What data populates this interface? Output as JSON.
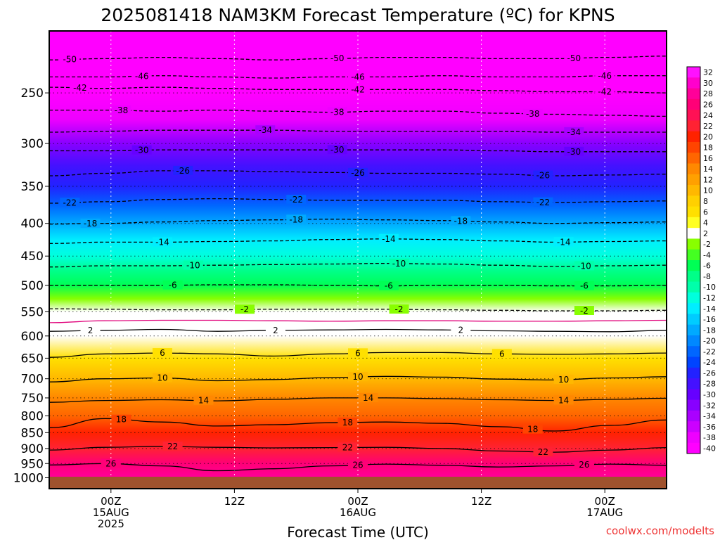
{
  "chart_data": {
    "type": "heatmap",
    "title": "2025081418 NAM3KM Forecast Temperature (ºC) for KPNS",
    "xlabel": "Forecast Time (UTC)",
    "ylabel": "",
    "credit": "coolwx.com/modelts",
    "y_scale": "log",
    "y_reversed": true,
    "ylim": [
      1040,
      200
    ],
    "y_ticks": [
      250,
      300,
      350,
      400,
      450,
      500,
      550,
      600,
      650,
      700,
      750,
      800,
      850,
      900,
      950,
      1000
    ],
    "xlim": [
      "2025-08-14 18Z",
      "2025-08-17 06Z"
    ],
    "x_ticks": [
      {
        "time": "2025-08-15 00Z",
        "lines": [
          "00Z",
          "15AUG",
          "2025"
        ]
      },
      {
        "time": "2025-08-15 12Z",
        "lines": [
          "12Z"
        ]
      },
      {
        "time": "2025-08-16 00Z",
        "lines": [
          "00Z",
          "16AUG"
        ]
      },
      {
        "time": "2025-08-16 12Z",
        "lines": [
          "12Z"
        ]
      },
      {
        "time": "2025-08-17 00Z",
        "lines": [
          "00Z",
          "17AUG"
        ]
      }
    ],
    "grid": true,
    "colorbar": {
      "position": "right",
      "labels": [
        "32",
        "30",
        "28",
        "26",
        "24",
        "22",
        "20",
        "18",
        "16",
        "14",
        "12",
        "10",
        "8",
        "6",
        "4",
        "2",
        "-2",
        "-4",
        "-6",
        "-8",
        "-10",
        "-12",
        "-14",
        "-16",
        "-18",
        "-20",
        "-22",
        "-24",
        "-26",
        "-28",
        "-30",
        "-32",
        "-34",
        "-36",
        "-38",
        "-40"
      ],
      "colors": [
        "#ff11ff",
        "#ff00cc",
        "#ff0099",
        "#ff0077",
        "#ff1155",
        "#ff2233",
        "#ff2200",
        "#ff4400",
        "#ff6600",
        "#ff8800",
        "#ffa000",
        "#ffb800",
        "#ffd000",
        "#ffe000",
        "#ffff22",
        "#ffffff",
        "#88ff00",
        "#44ff22",
        "#00ff55",
        "#00ff88",
        "#00ffaa",
        "#00ffdd",
        "#00eeff",
        "#00ccff",
        "#00aaff",
        "#0088ff",
        "#0066ff",
        "#0044ff",
        "#2222ff",
        "#4411ff",
        "#6600ff",
        "#8800ff",
        "#aa00ff",
        "#cc00ff",
        "#ee00ff",
        "#ff00ff"
      ]
    },
    "temperature_profile": [
      {
        "p": 200,
        "t": -56
      },
      {
        "p": 225,
        "t": -50
      },
      {
        "p": 250,
        "t": -44
      },
      {
        "p": 275,
        "t": -38
      },
      {
        "p": 300,
        "t": -33
      },
      {
        "p": 325,
        "t": -29
      },
      {
        "p": 350,
        "t": -26
      },
      {
        "p": 375,
        "t": -22
      },
      {
        "p": 400,
        "t": -19
      },
      {
        "p": 425,
        "t": -15
      },
      {
        "p": 450,
        "t": -12
      },
      {
        "p": 475,
        "t": -9
      },
      {
        "p": 500,
        "t": -6
      },
      {
        "p": 525,
        "t": -3.5
      },
      {
        "p": 550,
        "t": -0.5
      },
      {
        "p": 575,
        "t": 1
      },
      {
        "p": 600,
        "t": 3
      },
      {
        "p": 650,
        "t": 6.5
      },
      {
        "p": 700,
        "t": 10.5
      },
      {
        "p": 750,
        "t": 14
      },
      {
        "p": 800,
        "t": 17.5
      },
      {
        "p": 850,
        "t": 20.5
      },
      {
        "p": 900,
        "t": 23.5
      },
      {
        "p": 950,
        "t": 26.5
      },
      {
        "p": 1000,
        "t": 29
      },
      {
        "p": 1040,
        "t": 31
      }
    ],
    "contours": [
      {
        "value": -50,
        "style": "dashed",
        "label": "-50",
        "label_times": [
          "2025-08-14 20Z",
          "2025-08-15 22Z",
          "2025-08-16 21Z"
        ],
        "pressure": [
          222,
          221,
          220,
          221,
          222,
          221,
          220,
          220,
          221,
          221,
          220,
          219
        ]
      },
      {
        "value": -46,
        "style": "dashed",
        "label": "-46",
        "label_times": [
          "2025-08-15 03Z",
          "2025-08-16 00Z",
          "2025-08-17 00Z"
        ],
        "pressure": [
          236,
          236,
          235,
          236,
          237,
          236,
          236,
          235,
          236,
          236,
          235,
          235
        ]
      },
      {
        "value": -42,
        "style": "dashed",
        "label": "-42",
        "label_times": [
          "2025-08-14 21Z",
          "2025-08-16 00Z",
          "2025-08-17 00Z"
        ],
        "pressure": [
          245,
          246,
          245,
          246,
          247,
          247,
          247,
          247,
          248,
          249,
          249,
          250
        ]
      },
      {
        "value": -38,
        "style": "dashed",
        "label": "-38",
        "label_times": [
          "2025-08-15 01Z",
          "2025-08-15 22Z",
          "2025-08-16 17Z"
        ],
        "pressure": [
          266,
          266,
          267,
          266,
          267,
          268,
          267,
          267,
          269,
          270,
          271,
          272
        ]
      },
      {
        "value": -34,
        "style": "dashed",
        "label": "-34",
        "label_times": [
          "2025-08-15 15Z",
          "2025-08-16 21Z"
        ],
        "pressure": [
          288,
          287,
          286,
          286,
          286,
          287,
          287,
          287,
          287,
          288,
          288,
          288
        ]
      },
      {
        "value": -30,
        "style": "dashed",
        "label": "-30",
        "label_times": [
          "2025-08-15 03Z",
          "2025-08-15 22Z",
          "2025-08-16 21Z"
        ],
        "pressure": [
          308,
          308,
          307,
          307,
          307,
          307,
          307,
          307,
          308,
          309,
          309,
          309
        ]
      },
      {
        "value": -26,
        "style": "dashed",
        "label": "-26",
        "label_times": [
          "2025-08-15 07Z",
          "2025-08-16 00Z",
          "2025-08-16 18Z"
        ],
        "pressure": [
          337,
          334,
          331,
          331,
          332,
          333,
          334,
          334,
          335,
          337,
          336,
          335
        ]
      },
      {
        "value": -22,
        "style": "dashed",
        "label": "-22",
        "label_times": [
          "2025-08-14 20Z",
          "2025-08-15 18Z",
          "2025-08-16 18Z"
        ],
        "pressure": [
          372,
          370,
          367,
          366,
          367,
          368,
          368,
          368,
          370,
          371,
          370,
          369
        ]
      },
      {
        "value": -18,
        "style": "dashed",
        "label": "-18",
        "label_times": [
          "2025-08-14 22Z",
          "2025-08-15 18Z",
          "2025-08-16 10Z"
        ],
        "pressure": [
          401,
          400,
          398,
          396,
          395,
          394,
          395,
          396,
          398,
          400,
          399,
          398
        ]
      },
      {
        "value": -14,
        "style": "dashed",
        "label": "-14",
        "label_times": [
          "2025-08-15 05Z",
          "2025-08-16 03Z",
          "2025-08-16 20Z"
        ],
        "pressure": [
          430,
          428,
          428,
          427,
          426,
          424,
          423,
          424,
          426,
          428,
          427,
          426
        ]
      },
      {
        "value": -10,
        "style": "dashed",
        "label": "-10",
        "label_times": [
          "2025-08-15 08Z",
          "2025-08-16 04Z",
          "2025-08-16 22Z"
        ],
        "pressure": [
          468,
          466,
          466,
          465,
          464,
          463,
          462,
          463,
          465,
          467,
          466,
          465
        ]
      },
      {
        "value": -6,
        "style": "dashed",
        "label": "-6",
        "label_times": [
          "2025-08-15 06Z",
          "2025-08-16 03Z",
          "2025-08-16 22Z"
        ],
        "pressure": [
          500,
          500,
          500,
          499,
          499,
          500,
          501,
          500,
          500,
          501,
          501,
          500
        ]
      },
      {
        "value": -2,
        "style": "dashed",
        "label": "-2",
        "label_times": [
          "2025-08-15 13Z",
          "2025-08-16 04Z",
          "2025-08-16 22Z"
        ],
        "pressure": [
          544,
          545,
          546,
          546,
          545,
          545,
          545,
          546,
          547,
          548,
          548,
          547
        ]
      },
      {
        "value": 0,
        "style": "solid-magenta",
        "label": "",
        "label_times": [],
        "pressure": [
          572,
          568,
          567,
          567,
          568,
          569,
          568,
          568,
          569,
          569,
          568,
          567
        ]
      },
      {
        "value": 2,
        "style": "solid",
        "label": "2",
        "label_times": [
          "2025-08-14 22Z",
          "2025-08-15 16Z",
          "2025-08-16 10Z"
        ],
        "pressure": [
          590,
          588,
          586,
          590,
          588,
          587,
          586,
          587,
          589,
          590,
          591,
          588
        ]
      },
      {
        "value": 6,
        "style": "solid",
        "label": "6",
        "label_times": [
          "2025-08-15 05Z",
          "2025-08-16 00Z",
          "2025-08-16 14Z"
        ],
        "pressure": [
          648,
          640,
          638,
          640,
          645,
          640,
          637,
          637,
          640,
          641,
          640,
          638
        ]
      },
      {
        "value": 10,
        "style": "solid",
        "label": "10",
        "label_times": [
          "2025-08-15 05Z",
          "2025-08-16 00Z",
          "2025-08-16 20Z"
        ],
        "pressure": [
          708,
          700,
          698,
          705,
          702,
          697,
          694,
          696,
          701,
          703,
          698,
          695
        ]
      },
      {
        "value": 14,
        "style": "solid",
        "label": "14",
        "label_times": [
          "2025-08-15 09Z",
          "2025-08-16 01Z",
          "2025-08-16 20Z"
        ],
        "pressure": [
          762,
          757,
          755,
          758,
          754,
          750,
          750,
          752,
          755,
          757,
          754,
          751
        ]
      },
      {
        "value": 18,
        "style": "solid",
        "label": "18",
        "label_times": [
          "2025-08-15 01Z",
          "2025-08-15 23Z",
          "2025-08-16 17Z"
        ],
        "pressure": [
          835,
          808,
          818,
          830,
          826,
          820,
          818,
          822,
          832,
          845,
          828,
          812
        ]
      },
      {
        "value": 22,
        "style": "solid",
        "label": "22",
        "label_times": [
          "2025-08-15 06Z",
          "2025-08-15 23Z",
          "2025-08-16 18Z"
        ],
        "pressure": [
          905,
          896,
          893,
          896,
          898,
          897,
          896,
          900,
          908,
          912,
          905,
          897
        ]
      },
      {
        "value": 26,
        "style": "solid",
        "label": "26",
        "label_times": [
          "2025-08-15 00Z",
          "2025-08-16 00Z",
          "2025-08-16 22Z"
        ],
        "pressure": [
          955,
          950,
          958,
          975,
          968,
          958,
          952,
          956,
          962,
          958,
          952,
          956
        ]
      }
    ]
  }
}
